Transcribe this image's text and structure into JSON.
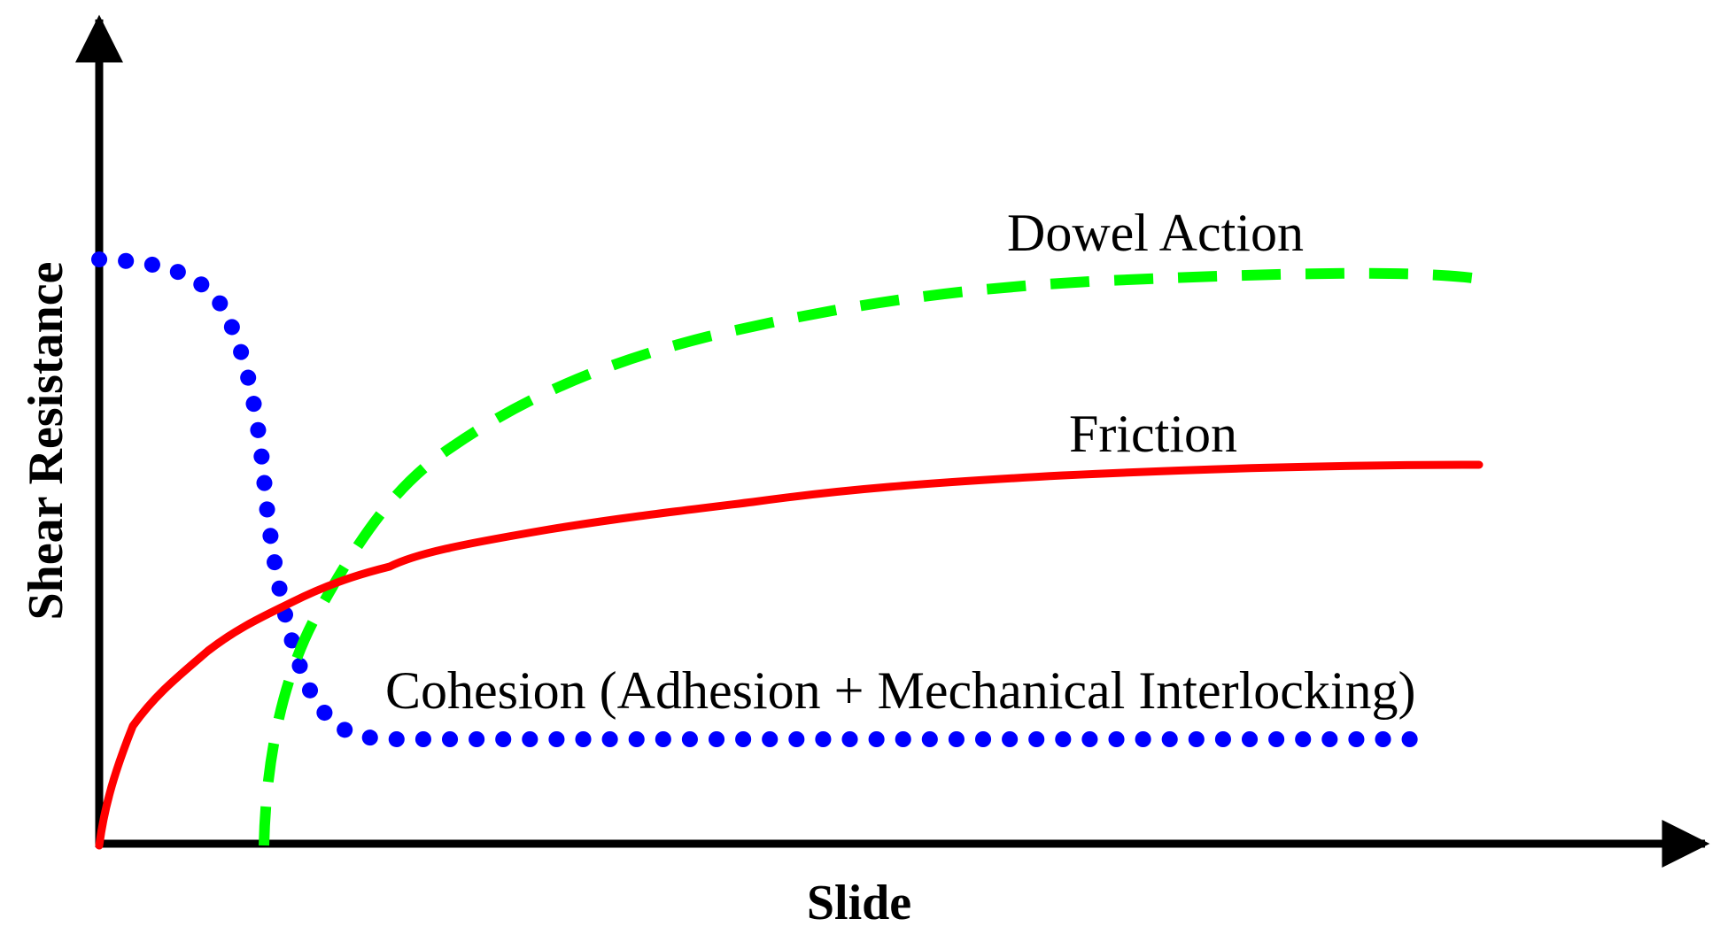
{
  "axes": {
    "x_label": "Slide",
    "y_label": "Shear Resistance"
  },
  "curves": [
    {
      "label": "Dowel Action",
      "color": "#00ff00",
      "style": "dashed"
    },
    {
      "label": "Friction",
      "color": "#ff0000",
      "style": "solid"
    },
    {
      "label": "Cohesion (Adhesion + Mechanical Interlocking)",
      "color": "#0000ff",
      "style": "dotted"
    }
  ],
  "colors": {
    "axis": "#000000"
  }
}
